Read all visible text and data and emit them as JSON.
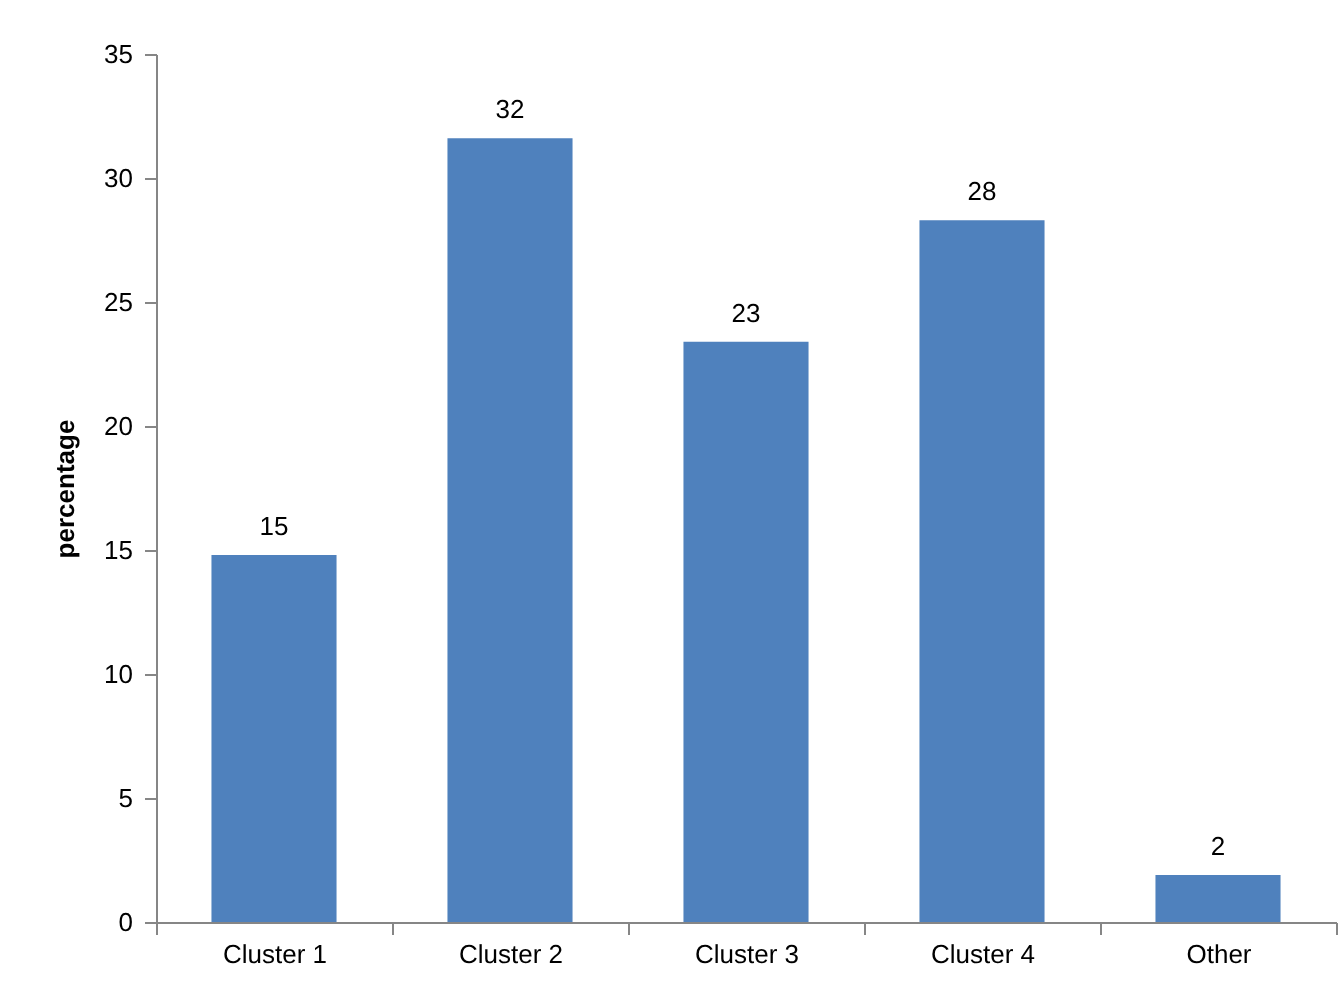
{
  "chart_data": {
    "type": "bar",
    "ylabel": "percentage",
    "categories": [
      "Cluster 1",
      "Cluster 2",
      "Cluster 3",
      "Cluster 4",
      "Other"
    ],
    "values": [
      14.8,
      31.6,
      23.4,
      28.3,
      1.9
    ],
    "value_labels": [
      "15",
      "32",
      "23",
      "28",
      "2"
    ],
    "color": "#4f81bd",
    "ylim": [
      0,
      35
    ],
    "yticks": [
      0,
      5,
      10,
      15,
      20,
      25,
      30,
      35
    ],
    "grid": false
  }
}
